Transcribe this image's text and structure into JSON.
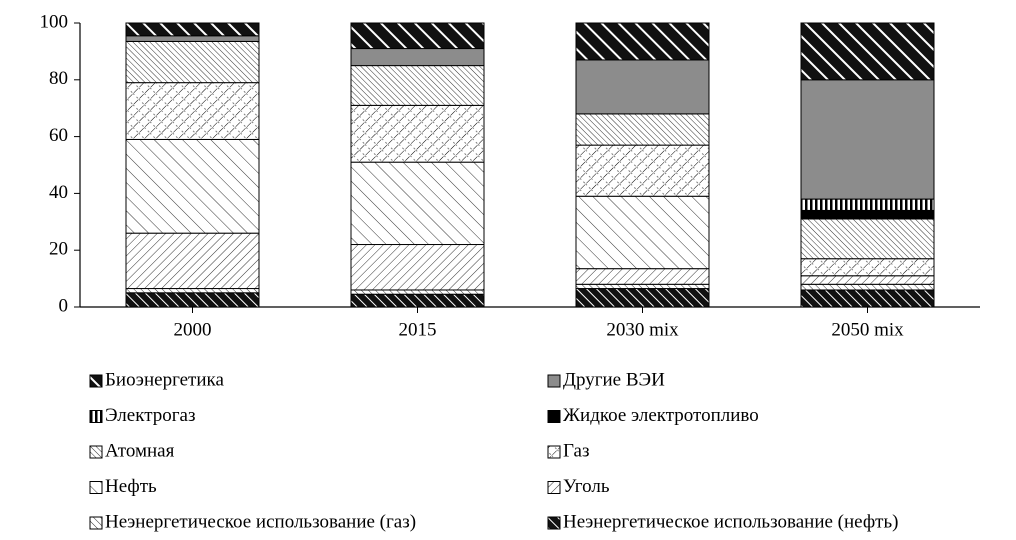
{
  "chart_data": {
    "type": "stacked_bar",
    "categories": [
      "2000",
      "2015",
      "2030 mix",
      "2050 mix"
    ],
    "ylim": [
      0,
      100
    ],
    "yticks": [
      0,
      20,
      40,
      60,
      80,
      100
    ],
    "series": [
      {
        "name": "Неэнергетическое использование (нефть)",
        "color": "#000000",
        "pattern": "dark-hatch",
        "values": [
          5,
          4.5,
          6.5,
          6
        ]
      },
      {
        "name": "Неэнергетическое использование (газ)",
        "color": "#000000",
        "pattern": "light-hatch",
        "values": [
          1.5,
          1.5,
          1.5,
          2
        ]
      },
      {
        "name": "Уголь",
        "color": "#000000",
        "pattern": "back-hatch",
        "values": [
          19.5,
          16,
          5.5,
          3
        ]
      },
      {
        "name": "Нефть",
        "color": "#000000",
        "pattern": "sparse-hatch",
        "values": [
          33,
          29,
          25.5,
          0
        ]
      },
      {
        "name": "Газ",
        "color": "#000000",
        "pattern": "cross-hatch",
        "values": [
          20,
          20,
          18,
          6
        ]
      },
      {
        "name": "Атомная",
        "color": "#000000",
        "pattern": "dense-hatch",
        "values": [
          14.5,
          14,
          11,
          14
        ]
      },
      {
        "name": "Жидкое электротопливо",
        "color": "#000000",
        "pattern": "solid",
        "values": [
          0,
          0,
          0,
          3
        ]
      },
      {
        "name": "Электрогаз",
        "color": "#000000",
        "pattern": "vertical",
        "values": [
          0,
          0,
          0,
          4
        ]
      },
      {
        "name": "Другие ВЭИ",
        "color": "#8c8c8c",
        "pattern": "solid",
        "values": [
          2,
          6,
          19,
          42
        ]
      },
      {
        "name": "Биоэнергетика",
        "color": "#000000",
        "pattern": "bio-hatch",
        "values": [
          4.5,
          9,
          13,
          20
        ]
      }
    ]
  }
}
